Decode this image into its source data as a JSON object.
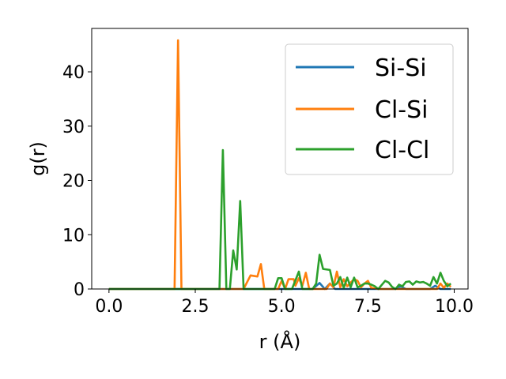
{
  "chart_data": {
    "type": "line",
    "xlabel": "r (Å)",
    "ylabel": "g(r)",
    "xlim": [
      -0.5,
      10.4
    ],
    "ylim": [
      0,
      48
    ],
    "xticks": [
      0.0,
      2.5,
      5.0,
      7.5,
      10.0
    ],
    "xtick_labels": [
      "0.0",
      "2.5",
      "5.0",
      "7.5",
      "10.0"
    ],
    "yticks": [
      0,
      10,
      20,
      30,
      40
    ],
    "ytick_labels": [
      "0",
      "10",
      "20",
      "30",
      "40"
    ],
    "grid": false,
    "legend_position": "top-right",
    "series": [
      {
        "name": "Si-Si",
        "color": "#1f77b4",
        "points": [
          [
            0.0,
            0
          ],
          [
            5.9,
            0
          ],
          [
            6.1,
            1.1
          ],
          [
            6.25,
            0
          ],
          [
            6.4,
            1.0
          ],
          [
            6.55,
            0
          ],
          [
            8.3,
            0
          ],
          [
            8.45,
            0.5
          ],
          [
            8.6,
            0
          ],
          [
            9.3,
            0
          ],
          [
            9.45,
            0.6
          ],
          [
            9.6,
            0
          ],
          [
            9.9,
            0
          ]
        ]
      },
      {
        "name": "Cl-Si",
        "color": "#ff7f0e",
        "points": [
          [
            0.0,
            0
          ],
          [
            1.9,
            0
          ],
          [
            2.0,
            45.8
          ],
          [
            2.1,
            0
          ],
          [
            3.9,
            0
          ],
          [
            4.1,
            2.5
          ],
          [
            4.3,
            2.3
          ],
          [
            4.4,
            4.6
          ],
          [
            4.5,
            0
          ],
          [
            4.9,
            0
          ],
          [
            5.0,
            1.5
          ],
          [
            5.1,
            0
          ],
          [
            5.2,
            1.8
          ],
          [
            5.35,
            1.8
          ],
          [
            5.4,
            0.6
          ],
          [
            5.5,
            2.0
          ],
          [
            5.6,
            0.6
          ],
          [
            5.7,
            3.0
          ],
          [
            5.8,
            0
          ],
          [
            6.3,
            0
          ],
          [
            6.4,
            1.0
          ],
          [
            6.5,
            0.3
          ],
          [
            6.6,
            3.2
          ],
          [
            6.7,
            0.3
          ],
          [
            6.8,
            1.8
          ],
          [
            6.9,
            0.5
          ],
          [
            7.0,
            1.2
          ],
          [
            7.1,
            1.8
          ],
          [
            7.2,
            1.5
          ],
          [
            7.3,
            0.3
          ],
          [
            7.4,
            1.0
          ],
          [
            7.5,
            1.5
          ],
          [
            7.6,
            0.2
          ],
          [
            7.8,
            0
          ],
          [
            9.5,
            0
          ],
          [
            9.6,
            1.0
          ],
          [
            9.7,
            0.2
          ],
          [
            9.8,
            1.0
          ],
          [
            9.9,
            0.4
          ]
        ]
      },
      {
        "name": "Cl-Cl",
        "color": "#2ca02c",
        "points": [
          [
            0.0,
            0
          ],
          [
            3.2,
            0
          ],
          [
            3.3,
            25.6
          ],
          [
            3.4,
            0
          ],
          [
            3.5,
            0
          ],
          [
            3.6,
            7.1
          ],
          [
            3.7,
            3.6
          ],
          [
            3.8,
            16.2
          ],
          [
            3.9,
            0
          ],
          [
            4.8,
            0
          ],
          [
            4.9,
            2.0
          ],
          [
            5.0,
            2.0
          ],
          [
            5.1,
            0
          ],
          [
            5.3,
            0
          ],
          [
            5.4,
            1.6
          ],
          [
            5.5,
            3.2
          ],
          [
            5.6,
            0
          ],
          [
            5.9,
            0
          ],
          [
            6.0,
            1.0
          ],
          [
            6.1,
            6.3
          ],
          [
            6.2,
            3.7
          ],
          [
            6.4,
            3.5
          ],
          [
            6.5,
            0.6
          ],
          [
            6.6,
            1.0
          ],
          [
            6.7,
            2.2
          ],
          [
            6.8,
            0.2
          ],
          [
            6.9,
            2.1
          ],
          [
            7.0,
            0.3
          ],
          [
            7.1,
            2.1
          ],
          [
            7.2,
            0.3
          ],
          [
            7.3,
            0.6
          ],
          [
            7.4,
            1.0
          ],
          [
            7.5,
            1.0
          ],
          [
            7.6,
            0.8
          ],
          [
            7.7,
            0.5
          ],
          [
            7.8,
            0
          ],
          [
            8.0,
            1.5
          ],
          [
            8.1,
            1.2
          ],
          [
            8.2,
            0.4
          ],
          [
            8.3,
            0
          ],
          [
            8.4,
            0.8
          ],
          [
            8.5,
            0.5
          ],
          [
            8.6,
            1.3
          ],
          [
            8.7,
            1.4
          ],
          [
            8.8,
            0.8
          ],
          [
            8.9,
            1.4
          ],
          [
            9.0,
            1.2
          ],
          [
            9.1,
            1.3
          ],
          [
            9.2,
            1.0
          ],
          [
            9.3,
            0.6
          ],
          [
            9.4,
            2.2
          ],
          [
            9.5,
            1.0
          ],
          [
            9.6,
            3.0
          ],
          [
            9.7,
            1.5
          ],
          [
            9.8,
            0.5
          ],
          [
            9.9,
            1.0
          ]
        ]
      }
    ]
  }
}
